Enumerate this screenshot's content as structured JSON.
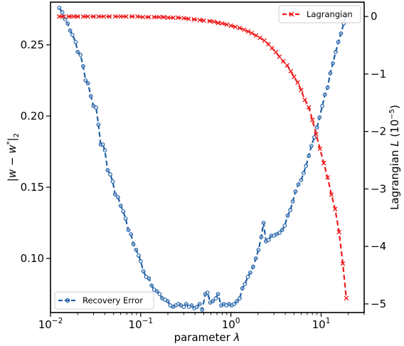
{
  "chart_data": {
    "type": "line",
    "x_scale": "log",
    "xlim": [
      0.01,
      30
    ],
    "xlabel": "parameter λ",
    "ylabel_left": "|w − w*|₂",
    "ylabel_right": "Lagrangian L (10⁻⁵)",
    "ylim_left": [
      0.062,
      0.28
    ],
    "ylim_right": [
      -5.15,
      0.25
    ],
    "x_ticks": [
      {
        "value": 0.01,
        "base": "10",
        "exp": "−2"
      },
      {
        "value": 0.1,
        "base": "10",
        "exp": "−1"
      },
      {
        "value": 1,
        "base": "10",
        "exp": "0"
      },
      {
        "value": 10,
        "base": "10",
        "exp": "1"
      }
    ],
    "y_ticks_left": [
      "0.10",
      "0.15",
      "0.20",
      "0.25"
    ],
    "y_ticks_right": [
      "−5",
      "−4",
      "−3",
      "−2",
      "−1",
      "0"
    ],
    "series": [
      {
        "name": "Recovery Error",
        "axis": "left",
        "color": "#1f5fa6",
        "linestyle": "dashed",
        "marker": "circle",
        "x": [
          0.0125,
          0.0135,
          0.0145,
          0.0155,
          0.0165,
          0.0175,
          0.019,
          0.02,
          0.0215,
          0.023,
          0.0245,
          0.026,
          0.028,
          0.03,
          0.032,
          0.034,
          0.036,
          0.038,
          0.04,
          0.043,
          0.046,
          0.049,
          0.052,
          0.056,
          0.06,
          0.064,
          0.068,
          0.073,
          0.078,
          0.083,
          0.089,
          0.095,
          0.1,
          0.107,
          0.115,
          0.123,
          0.132,
          0.141,
          0.151,
          0.162,
          0.173,
          0.186,
          0.199,
          0.213,
          0.228,
          0.244,
          0.262,
          0.28,
          0.3,
          0.32,
          0.343,
          0.367,
          0.393,
          0.421,
          0.451,
          0.48,
          0.52,
          0.55,
          0.59,
          0.63,
          0.68,
          0.72,
          0.78,
          0.83,
          0.89,
          0.95,
          1.02,
          1.09,
          1.17,
          1.25,
          1.34,
          1.43,
          1.54,
          1.64,
          1.76,
          1.89,
          2.02,
          2.17,
          2.3,
          2.45,
          2.62,
          2.8,
          3.0,
          3.2,
          3.45,
          3.7,
          3.95,
          4.25,
          4.55,
          4.85,
          5.2,
          5.6,
          6.0,
          6.4,
          6.8,
          7.3,
          7.8,
          8.4,
          9.0,
          9.6,
          10.3,
          11.0,
          11.8,
          12.6,
          13.5,
          14.5,
          15.5,
          16.6,
          17.8,
          19.0
        ],
        "values": [
          0.276,
          0.273,
          0.268,
          0.265,
          0.26,
          0.257,
          0.252,
          0.245,
          0.243,
          0.235,
          0.225,
          0.223,
          0.214,
          0.207,
          0.206,
          0.194,
          0.18,
          0.18,
          0.176,
          0.162,
          0.159,
          0.154,
          0.145,
          0.143,
          0.137,
          0.133,
          0.128,
          0.12,
          0.117,
          0.11,
          0.106,
          0.102,
          0.098,
          0.091,
          0.087,
          0.086,
          0.081,
          0.078,
          0.077,
          0.075,
          0.072,
          0.071,
          0.07,
          0.067,
          0.066,
          0.067,
          0.068,
          0.067,
          0.066,
          0.068,
          0.066,
          0.067,
          0.065,
          0.066,
          0.068,
          0.064,
          0.075,
          0.076,
          0.069,
          0.07,
          0.072,
          0.075,
          0.067,
          0.068,
          0.067,
          0.068,
          0.067,
          0.068,
          0.07,
          0.072,
          0.079,
          0.082,
          0.087,
          0.09,
          0.094,
          0.1,
          0.106,
          0.115,
          0.125,
          0.112,
          0.113,
          0.116,
          0.116,
          0.117,
          0.118,
          0.12,
          0.123,
          0.13,
          0.134,
          0.14,
          0.147,
          0.152,
          0.155,
          0.16,
          0.165,
          0.172,
          0.179,
          0.185,
          0.192,
          0.199,
          0.207,
          0.215,
          0.22,
          0.23,
          0.237,
          0.245,
          0.252,
          0.258,
          0.265,
          0.271
        ]
      },
      {
        "name": "Lagrangian",
        "axis": "right",
        "color": "#ee1c1c",
        "linestyle": "dashed",
        "marker": "x",
        "x": [
          0.0125,
          0.014,
          0.016,
          0.018,
          0.02,
          0.023,
          0.026,
          0.03,
          0.034,
          0.039,
          0.045,
          0.052,
          0.06,
          0.069,
          0.08,
          0.092,
          0.106,
          0.122,
          0.14,
          0.16,
          0.18,
          0.2,
          0.23,
          0.26,
          0.3,
          0.34,
          0.39,
          0.45,
          0.5,
          0.58,
          0.65,
          0.72,
          0.8,
          0.9,
          1.0,
          1.12,
          1.25,
          1.4,
          1.55,
          1.7,
          1.9,
          2.1,
          2.35,
          2.6,
          2.85,
          3.15,
          3.45,
          3.8,
          4.2,
          4.6,
          5.0,
          5.5,
          6.0,
          6.6,
          7.3,
          8.0,
          8.8,
          9.7,
          10.7,
          11.8,
          13.0,
          14.3,
          15.8,
          17.4,
          19.0
        ],
        "values": [
          0.0,
          0.0,
          0.0,
          0.0,
          0.0,
          0.0,
          0.0,
          0.0,
          0.0,
          0.0,
          0.0,
          0.0,
          0.0,
          0.0,
          0.0,
          0.0,
          -0.01,
          -0.01,
          -0.01,
          -0.01,
          -0.01,
          -0.02,
          -0.02,
          -0.02,
          -0.03,
          -0.04,
          -0.05,
          -0.06,
          -0.07,
          -0.08,
          -0.09,
          -0.11,
          -0.12,
          -0.14,
          -0.16,
          -0.18,
          -0.2,
          -0.23,
          -0.26,
          -0.29,
          -0.33,
          -0.37,
          -0.42,
          -0.48,
          -0.55,
          -0.62,
          -0.7,
          -0.78,
          -0.85,
          -0.95,
          -1.05,
          -1.15,
          -1.28,
          -1.45,
          -1.58,
          -1.8,
          -2.05,
          -2.3,
          -2.55,
          -2.8,
          -3.1,
          -3.35,
          -3.75,
          -4.3,
          -4.9
        ]
      }
    ],
    "legends": [
      {
        "label": "Recovery Error",
        "position": "lower-left"
      },
      {
        "label": "Lagrangian",
        "position": "upper-right"
      }
    ],
    "grid": false
  }
}
